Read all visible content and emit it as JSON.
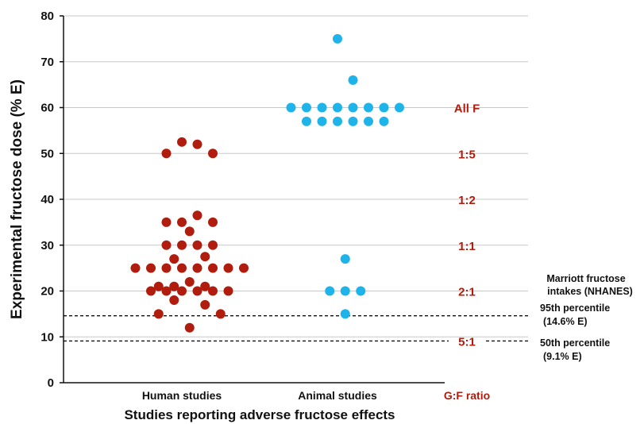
{
  "chart_data": {
    "type": "scatter",
    "title": "",
    "ylabel": "Experimental fructose dose (% E)",
    "xlabel": "Studies reporting adverse fructose effects",
    "ylim": [
      0,
      80
    ],
    "yticks": [
      "0",
      "10",
      "20",
      "30",
      "40",
      "50",
      "60",
      "70",
      "80"
    ],
    "grid": "horizontal",
    "categories": [
      "Human studies",
      "Animal studies",
      "G:F ratio"
    ],
    "series": [
      {
        "name": "Human studies",
        "color": "#b01c0e",
        "points": [
          {
            "x": -1.0,
            "y": 50
          },
          {
            "x": 0.0,
            "y": 52.5
          },
          {
            "x": 1.0,
            "y": 52
          },
          {
            "x": 2.0,
            "y": 50
          },
          {
            "x": -1.0,
            "y": 35
          },
          {
            "x": 0.0,
            "y": 35
          },
          {
            "x": 1.0,
            "y": 36.5
          },
          {
            "x": 2.0,
            "y": 35
          },
          {
            "x": 0.5,
            "y": 33
          },
          {
            "x": -1.0,
            "y": 30
          },
          {
            "x": 0.0,
            "y": 30
          },
          {
            "x": 1.0,
            "y": 30
          },
          {
            "x": 2.0,
            "y": 30
          },
          {
            "x": -0.5,
            "y": 27
          },
          {
            "x": 1.5,
            "y": 27.5
          },
          {
            "x": -3.0,
            "y": 25
          },
          {
            "x": -2.0,
            "y": 25
          },
          {
            "x": -1.0,
            "y": 25
          },
          {
            "x": 0.0,
            "y": 25
          },
          {
            "x": 1.0,
            "y": 25
          },
          {
            "x": 2.0,
            "y": 25
          },
          {
            "x": 3.0,
            "y": 25
          },
          {
            "x": 4.0,
            "y": 25
          },
          {
            "x": 0.5,
            "y": 22
          },
          {
            "x": -1.5,
            "y": 21
          },
          {
            "x": -0.5,
            "y": 21
          },
          {
            "x": 1.5,
            "y": 21
          },
          {
            "x": -2.0,
            "y": 20
          },
          {
            "x": -1.0,
            "y": 20
          },
          {
            "x": 0.0,
            "y": 20
          },
          {
            "x": 1.0,
            "y": 20
          },
          {
            "x": 2.0,
            "y": 20
          },
          {
            "x": 3.0,
            "y": 20
          },
          {
            "x": -0.5,
            "y": 18
          },
          {
            "x": 1.5,
            "y": 17
          },
          {
            "x": -1.5,
            "y": 15
          },
          {
            "x": 2.5,
            "y": 15
          },
          {
            "x": 0.5,
            "y": 12
          }
        ]
      },
      {
        "name": "Animal studies",
        "color": "#1eb4ea",
        "points": [
          {
            "x": 0.0,
            "y": 75
          },
          {
            "x": 1.0,
            "y": 66
          },
          {
            "x": -3.0,
            "y": 60
          },
          {
            "x": -2.0,
            "y": 60
          },
          {
            "x": -1.0,
            "y": 60
          },
          {
            "x": 0.0,
            "y": 60
          },
          {
            "x": 1.0,
            "y": 60
          },
          {
            "x": 2.0,
            "y": 60
          },
          {
            "x": 3.0,
            "y": 60
          },
          {
            "x": 4.0,
            "y": 60
          },
          {
            "x": -2.0,
            "y": 57
          },
          {
            "x": -1.0,
            "y": 57
          },
          {
            "x": 0.0,
            "y": 57
          },
          {
            "x": 1.0,
            "y": 57
          },
          {
            "x": 2.0,
            "y": 57
          },
          {
            "x": 3.0,
            "y": 57
          },
          {
            "x": 0.5,
            "y": 27
          },
          {
            "x": -0.5,
            "y": 20
          },
          {
            "x": 0.5,
            "y": 20
          },
          {
            "x": 1.5,
            "y": 20
          },
          {
            "x": 0.5,
            "y": 15
          }
        ]
      }
    ],
    "ratio_header": "G:F ratio",
    "ratio_labels": [
      {
        "label": "All F",
        "y": 60
      },
      {
        "label": "1:5",
        "y": 50
      },
      {
        "label": "1:2",
        "y": 40
      },
      {
        "label": "1:1",
        "y": 30
      },
      {
        "label": "2:1",
        "y": 20
      },
      {
        "label": "5:1",
        "y": 9.1
      }
    ],
    "ratio_color": "#b01c0e",
    "reference_lines": [
      {
        "y": 14.6,
        "style": "dashed",
        "label_line1": "95th percentile",
        "label_line2": "(14.6% E)"
      },
      {
        "y": 9.1,
        "style": "dashed",
        "label_line1": "50th percentile",
        "label_line2": "(9.1% E)"
      }
    ],
    "reference_title_line1": "Marriott fructose",
    "reference_title_line2": "intakes (NHANES)"
  }
}
